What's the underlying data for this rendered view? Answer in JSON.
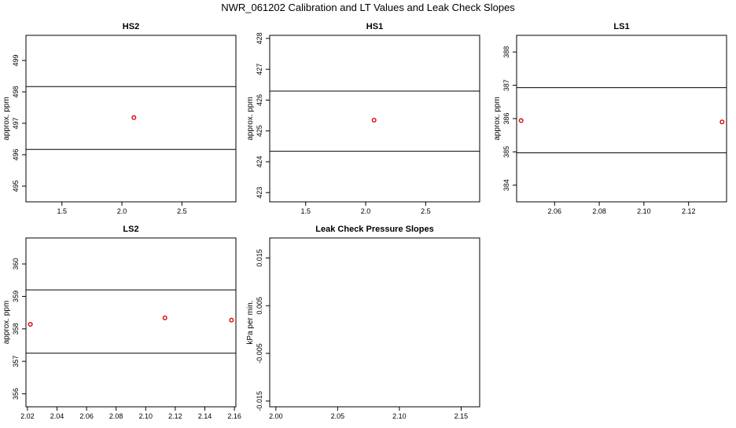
{
  "title": "NWR_061202  Calibration and LT Values and Leak Check Slopes",
  "chart_data": [
    {
      "type": "scatter",
      "title": "HS2",
      "ylabel": "approx. ppm",
      "xlim": [
        1.2,
        2.95
      ],
      "ylim": [
        494.5,
        499.8
      ],
      "xticks": [
        1.5,
        2.0,
        2.5
      ],
      "xtick_labels": [
        "1.5",
        "2.0",
        "2.5"
      ],
      "yticks": [
        495,
        496,
        497,
        498,
        499
      ],
      "ytick_labels": [
        "495",
        "496",
        "497",
        "498",
        "499"
      ],
      "hlines": [
        498.17,
        496.17
      ],
      "points": [
        {
          "x": 2.1,
          "y": 497.18
        }
      ]
    },
    {
      "type": "scatter",
      "title": "HS1",
      "ylabel": "approx. ppm",
      "xlim": [
        1.2,
        2.95
      ],
      "ylim": [
        422.7,
        428.1
      ],
      "xticks": [
        1.5,
        2.0,
        2.5
      ],
      "xtick_labels": [
        "1.5",
        "2.0",
        "2.5"
      ],
      "yticks": [
        423,
        424,
        425,
        426,
        427,
        428
      ],
      "ytick_labels": [
        "423",
        "424",
        "425",
        "426",
        "427",
        "428"
      ],
      "hlines": [
        426.29,
        424.34
      ],
      "points": [
        {
          "x": 2.07,
          "y": 425.35
        }
      ]
    },
    {
      "type": "scatter",
      "title": "LS1",
      "ylabel": "approx. ppm",
      "xlim": [
        2.043,
        2.137
      ],
      "ylim": [
        383.5,
        388.5
      ],
      "xticks": [
        2.06,
        2.08,
        2.1,
        2.12
      ],
      "xtick_labels": [
        "2.06",
        "2.08",
        "2.10",
        "2.12"
      ],
      "yticks": [
        384,
        385,
        386,
        387,
        388
      ],
      "ytick_labels": [
        "384",
        "385",
        "386",
        "387",
        "388"
      ],
      "hlines": [
        386.93,
        384.97
      ],
      "points": [
        {
          "x": 2.045,
          "y": 385.94
        },
        {
          "x": 2.135,
          "y": 385.9
        }
      ]
    },
    {
      "type": "scatter",
      "title": "LS2",
      "ylabel": "approx. ppm",
      "xlim": [
        2.019,
        2.161
      ],
      "ylim": [
        355.6,
        360.8
      ],
      "xticks": [
        2.02,
        2.04,
        2.06,
        2.08,
        2.1,
        2.12,
        2.14,
        2.16
      ],
      "xtick_labels": [
        "2.02",
        "2.04",
        "2.06",
        "2.08",
        "2.10",
        "2.12",
        "2.14",
        "2.16"
      ],
      "yticks": [
        356,
        357,
        358,
        359,
        360
      ],
      "ytick_labels": [
        "356",
        "357",
        "358",
        "359",
        "360"
      ],
      "hlines": [
        359.2,
        357.25
      ],
      "points": [
        {
          "x": 2.022,
          "y": 358.14
        },
        {
          "x": 2.113,
          "y": 358.34
        },
        {
          "x": 2.158,
          "y": 358.27
        }
      ]
    },
    {
      "type": "scatter",
      "title": "Leak Check Pressure Slopes",
      "ylabel": "kPa per min.",
      "xlim": [
        1.995,
        2.165
      ],
      "ylim": [
        -0.0162,
        0.0192
      ],
      "xticks": [
        2.0,
        2.05,
        2.1,
        2.15
      ],
      "xtick_labels": [
        "2.00",
        "2.05",
        "2.10",
        "2.15"
      ],
      "yticks": [
        -0.015,
        -0.005,
        0.005,
        0.015
      ],
      "ytick_labels": [
        "-0.015",
        "-0.005",
        "0.005",
        "0.015"
      ],
      "hlines": [],
      "points": []
    }
  ],
  "colors": {
    "points": "#dd0000",
    "axes": "#000000",
    "background": "#ffffff"
  }
}
